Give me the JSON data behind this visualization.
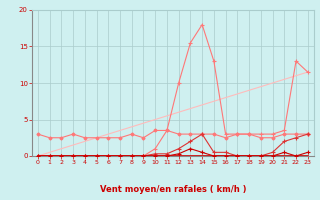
{
  "x": [
    0,
    1,
    2,
    3,
    4,
    5,
    6,
    7,
    8,
    9,
    10,
    11,
    12,
    13,
    14,
    15,
    16,
    17,
    18,
    19,
    20,
    21,
    22,
    23
  ],
  "line_pink_peak": [
    0.0,
    0.0,
    0.0,
    0.0,
    0.0,
    0.0,
    0.0,
    0.0,
    0.0,
    0.0,
    1.0,
    3.5,
    10.0,
    15.5,
    18.0,
    13.0,
    3.0,
    3.0,
    3.0,
    3.0,
    3.0,
    3.5,
    13.0,
    11.5
  ],
  "line_pink_linear": [
    0.0,
    0.5,
    1.0,
    1.5,
    2.0,
    2.5,
    3.0,
    3.5,
    4.0,
    4.5,
    5.0,
    5.5,
    6.0,
    6.5,
    7.0,
    7.5,
    8.0,
    8.5,
    9.0,
    9.5,
    10.0,
    10.5,
    11.0,
    11.5
  ],
  "line_med_flat": [
    3.0,
    2.5,
    2.5,
    3.0,
    2.5,
    2.5,
    2.5,
    2.5,
    3.0,
    2.5,
    3.5,
    3.5,
    3.0,
    3.0,
    3.0,
    3.0,
    2.5,
    3.0,
    3.0,
    2.5,
    2.5,
    3.0,
    3.0,
    3.0
  ],
  "line_dark_mid": [
    0.0,
    0.0,
    0.0,
    0.0,
    0.0,
    0.0,
    0.0,
    0.0,
    0.0,
    0.0,
    0.3,
    0.3,
    1.0,
    2.0,
    3.0,
    0.5,
    0.5,
    0.0,
    0.0,
    0.0,
    0.5,
    2.0,
    2.5,
    3.0
  ],
  "line_dark_low": [
    0.0,
    0.0,
    0.0,
    0.0,
    0.0,
    0.0,
    0.0,
    0.0,
    0.0,
    0.0,
    0.0,
    0.0,
    0.3,
    1.0,
    0.5,
    0.0,
    0.0,
    0.0,
    0.0,
    0.0,
    0.0,
    0.5,
    0.0,
    0.5
  ],
  "line_base": [
    0.0,
    0.0,
    0.0,
    0.0,
    0.0,
    0.0,
    0.0,
    0.0,
    0.0,
    0.0,
    0.0,
    0.0,
    0.0,
    0.0,
    0.0,
    0.0,
    0.0,
    0.0,
    0.0,
    0.0,
    0.0,
    0.0,
    0.0,
    0.0
  ],
  "xlabel": "Vent moyen/en rafales ( km/h )",
  "ylim": [
    0,
    20
  ],
  "xlim": [
    -0.5,
    23.5
  ],
  "yticks": [
    0,
    5,
    10,
    15,
    20
  ],
  "xticks": [
    0,
    1,
    2,
    3,
    4,
    5,
    6,
    7,
    8,
    9,
    10,
    11,
    12,
    13,
    14,
    15,
    16,
    17,
    18,
    19,
    20,
    21,
    22,
    23
  ],
  "bg_color": "#cff0f0",
  "grid_color": "#aacccc",
  "color_dark_red": "#cc0000",
  "color_med_red": "#dd3333",
  "color_light_red": "#ff7777",
  "color_pink": "#ffaaaa",
  "color_pale_pink": "#ffbbbb"
}
